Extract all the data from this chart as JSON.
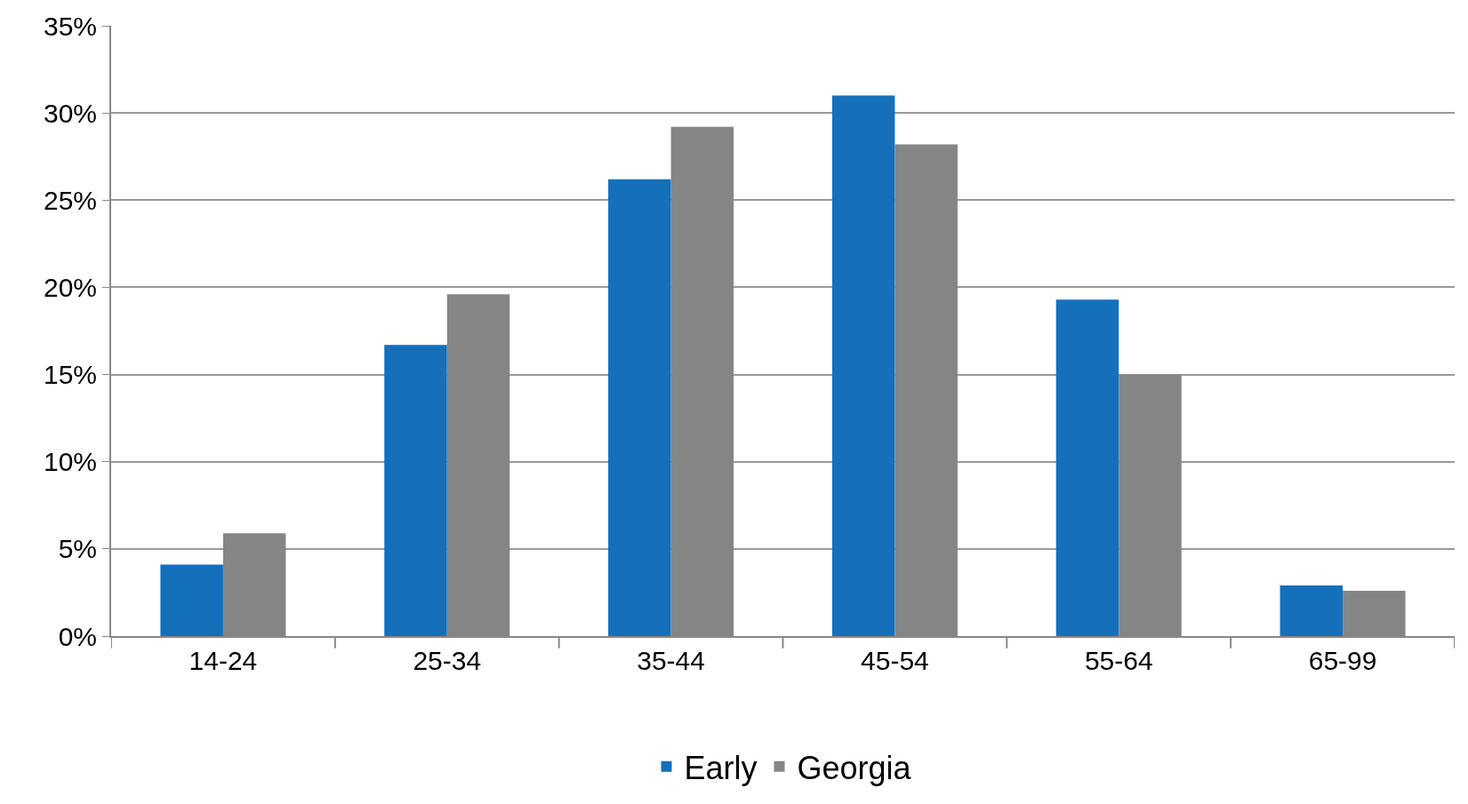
{
  "chart_data": {
    "type": "bar",
    "categories": [
      "14-24",
      "25-34",
      "35-44",
      "45-54",
      "55-64",
      "65-99"
    ],
    "series": [
      {
        "name": "Early",
        "color": "#1570bc",
        "values": [
          4.1,
          16.7,
          26.2,
          31.0,
          19.3,
          2.9
        ]
      },
      {
        "name": "Georgia",
        "color": "#858585",
        "values": [
          5.9,
          19.6,
          29.2,
          28.2,
          15.0,
          2.6
        ]
      }
    ],
    "ylim": [
      0,
      35
    ],
    "yticks": [
      {
        "value": 0,
        "label": "0%"
      },
      {
        "value": 5,
        "label": "5%"
      },
      {
        "value": 10,
        "label": "10%"
      },
      {
        "value": 15,
        "label": "15%"
      },
      {
        "value": 20,
        "label": "20%"
      },
      {
        "value": 25,
        "label": "25%"
      },
      {
        "value": 30,
        "label": "30%"
      },
      {
        "value": 35,
        "label": "35%"
      }
    ],
    "grid": "y",
    "legend": "bottom"
  }
}
